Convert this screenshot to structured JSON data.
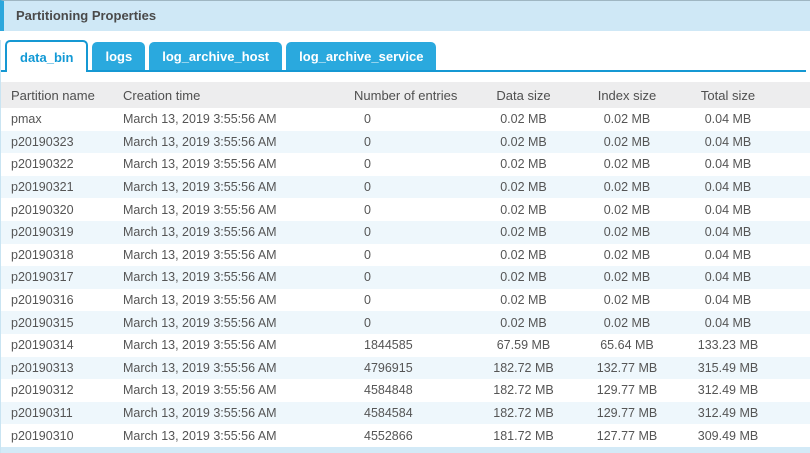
{
  "panel": {
    "title": "Partitioning Properties"
  },
  "tabs": [
    {
      "label": "data_bin",
      "active": true
    },
    {
      "label": "logs",
      "active": false
    },
    {
      "label": "log_archive_host",
      "active": false
    },
    {
      "label": "log_archive_service",
      "active": false
    }
  ],
  "table": {
    "columns": [
      "Partition name",
      "Creation time",
      "Number of entries",
      "Data size",
      "Index size",
      "Total size"
    ],
    "rows": [
      {
        "name": "pmax",
        "creation_time": "March 13, 2019 3:55:56 AM",
        "entries": "0",
        "data_size": "0.02 MB",
        "index_size": "0.02 MB",
        "total_size": "0.04 MB"
      },
      {
        "name": "p20190323",
        "creation_time": "March 13, 2019 3:55:56 AM",
        "entries": "0",
        "data_size": "0.02 MB",
        "index_size": "0.02 MB",
        "total_size": "0.04 MB"
      },
      {
        "name": "p20190322",
        "creation_time": "March 13, 2019 3:55:56 AM",
        "entries": "0",
        "data_size": "0.02 MB",
        "index_size": "0.02 MB",
        "total_size": "0.04 MB"
      },
      {
        "name": "p20190321",
        "creation_time": "March 13, 2019 3:55:56 AM",
        "entries": "0",
        "data_size": "0.02 MB",
        "index_size": "0.02 MB",
        "total_size": "0.04 MB"
      },
      {
        "name": "p20190320",
        "creation_time": "March 13, 2019 3:55:56 AM",
        "entries": "0",
        "data_size": "0.02 MB",
        "index_size": "0.02 MB",
        "total_size": "0.04 MB"
      },
      {
        "name": "p20190319",
        "creation_time": "March 13, 2019 3:55:56 AM",
        "entries": "0",
        "data_size": "0.02 MB",
        "index_size": "0.02 MB",
        "total_size": "0.04 MB"
      },
      {
        "name": "p20190318",
        "creation_time": "March 13, 2019 3:55:56 AM",
        "entries": "0",
        "data_size": "0.02 MB",
        "index_size": "0.02 MB",
        "total_size": "0.04 MB"
      },
      {
        "name": "p20190317",
        "creation_time": "March 13, 2019 3:55:56 AM",
        "entries": "0",
        "data_size": "0.02 MB",
        "index_size": "0.02 MB",
        "total_size": "0.04 MB"
      },
      {
        "name": "p20190316",
        "creation_time": "March 13, 2019 3:55:56 AM",
        "entries": "0",
        "data_size": "0.02 MB",
        "index_size": "0.02 MB",
        "total_size": "0.04 MB"
      },
      {
        "name": "p20190315",
        "creation_time": "March 13, 2019 3:55:56 AM",
        "entries": "0",
        "data_size": "0.02 MB",
        "index_size": "0.02 MB",
        "total_size": "0.04 MB"
      },
      {
        "name": "p20190314",
        "creation_time": "March 13, 2019 3:55:56 AM",
        "entries": "1844585",
        "data_size": "67.59 MB",
        "index_size": "65.64 MB",
        "total_size": "133.23 MB"
      },
      {
        "name": "p20190313",
        "creation_time": "March 13, 2019 3:55:56 AM",
        "entries": "4796915",
        "data_size": "182.72 MB",
        "index_size": "132.77 MB",
        "total_size": "315.49 MB"
      },
      {
        "name": "p20190312",
        "creation_time": "March 13, 2019 3:55:56 AM",
        "entries": "4584848",
        "data_size": "182.72 MB",
        "index_size": "129.77 MB",
        "total_size": "312.49 MB"
      },
      {
        "name": "p20190311",
        "creation_time": "March 13, 2019 3:55:56 AM",
        "entries": "4584584",
        "data_size": "182.72 MB",
        "index_size": "129.77 MB",
        "total_size": "312.49 MB"
      },
      {
        "name": "p20190310",
        "creation_time": "March 13, 2019 3:55:56 AM",
        "entries": "4552866",
        "data_size": "181.72 MB",
        "index_size": "127.77 MB",
        "total_size": "309.49 MB"
      }
    ]
  },
  "colors": {
    "accent": "#1598d3",
    "tab_inactive_bg": "#2aa9de",
    "titlebar_bg": "#cfe8f6",
    "titlebar_stripe": "#2da7dc",
    "header_bg": "#ededee",
    "row_alt_bg": "#eef7fc",
    "bottom_strip_bg": "#d3eaf7",
    "text": "#555555"
  }
}
